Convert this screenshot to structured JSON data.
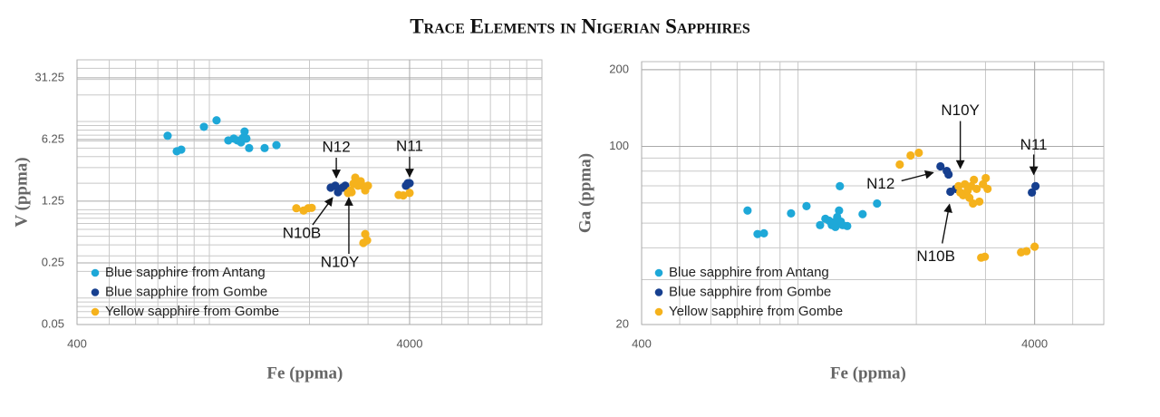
{
  "title": "Trace Elements in Nigerian Sapphires",
  "chart_data": [
    {
      "type": "scatter",
      "xlabel": "Fe (ppma)",
      "ylabel": "V (ppma)",
      "xscale": "log",
      "yscale": "log",
      "xlim": [
        400,
        10000
      ],
      "ylim": [
        0.05,
        50
      ],
      "xticks": [
        400,
        4000
      ],
      "yticks": [
        0.05,
        0.25,
        1.25,
        6.25,
        31.25
      ],
      "grid": true,
      "minor_grid": true,
      "legend": "lower left",
      "series": [
        {
          "name": "Blue sapphire from Antang",
          "color": "#1ea8d8",
          "x": [
            749,
            798,
            823,
            963,
            1051,
            1140,
            1184,
            1214,
            1245,
            1260,
            1276,
            1292,
            1317,
            1466,
            1591
          ],
          "y": [
            6.9,
            4.6,
            4.8,
            8.7,
            10.3,
            6.1,
            6.4,
            6.1,
            5.8,
            6.5,
            7.7,
            6.4,
            5.0,
            5.0,
            5.4
          ]
        },
        {
          "name": "Blue sapphire from Gombe",
          "color": "#163f8f",
          "x": [
            2317,
            2391,
            2437,
            2514,
            2562,
            3900,
            3950,
            4000
          ],
          "y": [
            1.78,
            1.87,
            1.58,
            1.78,
            1.87,
            1.87,
            2.0,
            2.0
          ]
        },
        {
          "name": "Yellow sapphire from Gombe",
          "color": "#f5b21c",
          "x": [
            1826,
            1920,
            1982,
            2031,
            2611,
            2660,
            2677,
            2712,
            2746,
            2763,
            2798,
            2852,
            2888,
            2942,
            2998,
            2904,
            2942,
            2980,
            3709,
            3828,
            4000
          ],
          "y": [
            1.04,
            0.98,
            1.04,
            1.05,
            1.55,
            1.66,
            1.58,
            1.98,
            2.31,
            2.1,
            1.87,
            2.1,
            1.87,
            1.66,
            1.87,
            0.42,
            0.53,
            0.45,
            1.47,
            1.45,
            1.55
          ]
        }
      ],
      "annotations": [
        {
          "text": "N12",
          "x": 2408,
          "y": 2.31
        },
        {
          "text": "N11",
          "x": 4000,
          "y": 2.37
        },
        {
          "text": "N10B",
          "x": 2347,
          "y": 1.37
        },
        {
          "text": "N10Y",
          "x": 2627,
          "y": 1.37
        }
      ]
    },
    {
      "type": "scatter",
      "xlabel": "Fe (ppma)",
      "ylabel": "Ga (ppma)",
      "xscale": "log",
      "yscale": "log",
      "xlim": [
        400,
        6000
      ],
      "ylim": [
        20,
        215
      ],
      "xticks": [
        400,
        4000
      ],
      "yticks": [
        20,
        100,
        200
      ],
      "grid": true,
      "minor_grid": true,
      "legend": "lower left",
      "series": [
        {
          "name": "Blue sapphire from Antang",
          "color": "#1ea8d8",
          "x": [
            744,
            789,
            819,
            960,
            1051,
            1138,
            1174,
            1200,
            1219,
            1232,
            1245,
            1258,
            1272,
            1278,
            1285,
            1299,
            1334,
            1460,
            1589
          ],
          "y": [
            56,
            45.3,
            45.6,
            54.6,
            58.3,
            49.1,
            52,
            51.1,
            49.1,
            50.3,
            48.3,
            52.8,
            56,
            69.8,
            50.7,
            49.1,
            48.7,
            54.2,
            59.7
          ]
        },
        {
          "name": "Blue sapphire from Gombe",
          "color": "#163f8f",
          "x": [
            2304,
            2391,
            2416,
            2442,
            2521,
            3937,
            4021
          ],
          "y": [
            83.5,
            80.1,
            77.6,
            66.4,
            68.1,
            65.9,
            69.8
          ]
        },
        {
          "name": "Yellow sapphire from Gombe",
          "color": "#f5b21c",
          "x": [
            1815,
            1934,
            2029,
            2562,
            2588,
            2631,
            2659,
            2701,
            2730,
            2759,
            2788,
            2803,
            2848,
            2894,
            2956,
            3004,
            3036,
            2925,
            2988,
            3694,
            3814,
            4000
          ],
          "y": [
            84.9,
            92.1,
            94.4,
            69.8,
            65.9,
            64.3,
            71,
            67,
            62.8,
            69.8,
            59.7,
            73.9,
            68.1,
            60.7,
            71,
            75.1,
            68.1,
            36.6,
            36.9,
            38.4,
            38.8,
            40.4
          ]
        }
      ],
      "annotations": [
        {
          "text": "N10Y",
          "x": 2588,
          "y": 82.1
        },
        {
          "text": "N11",
          "x": 3979,
          "y": 77.6
        },
        {
          "text": "N12",
          "x": 2208,
          "y": 78.9
        },
        {
          "text": "N10B",
          "x": 2429,
          "y": 59.2
        }
      ]
    }
  ]
}
